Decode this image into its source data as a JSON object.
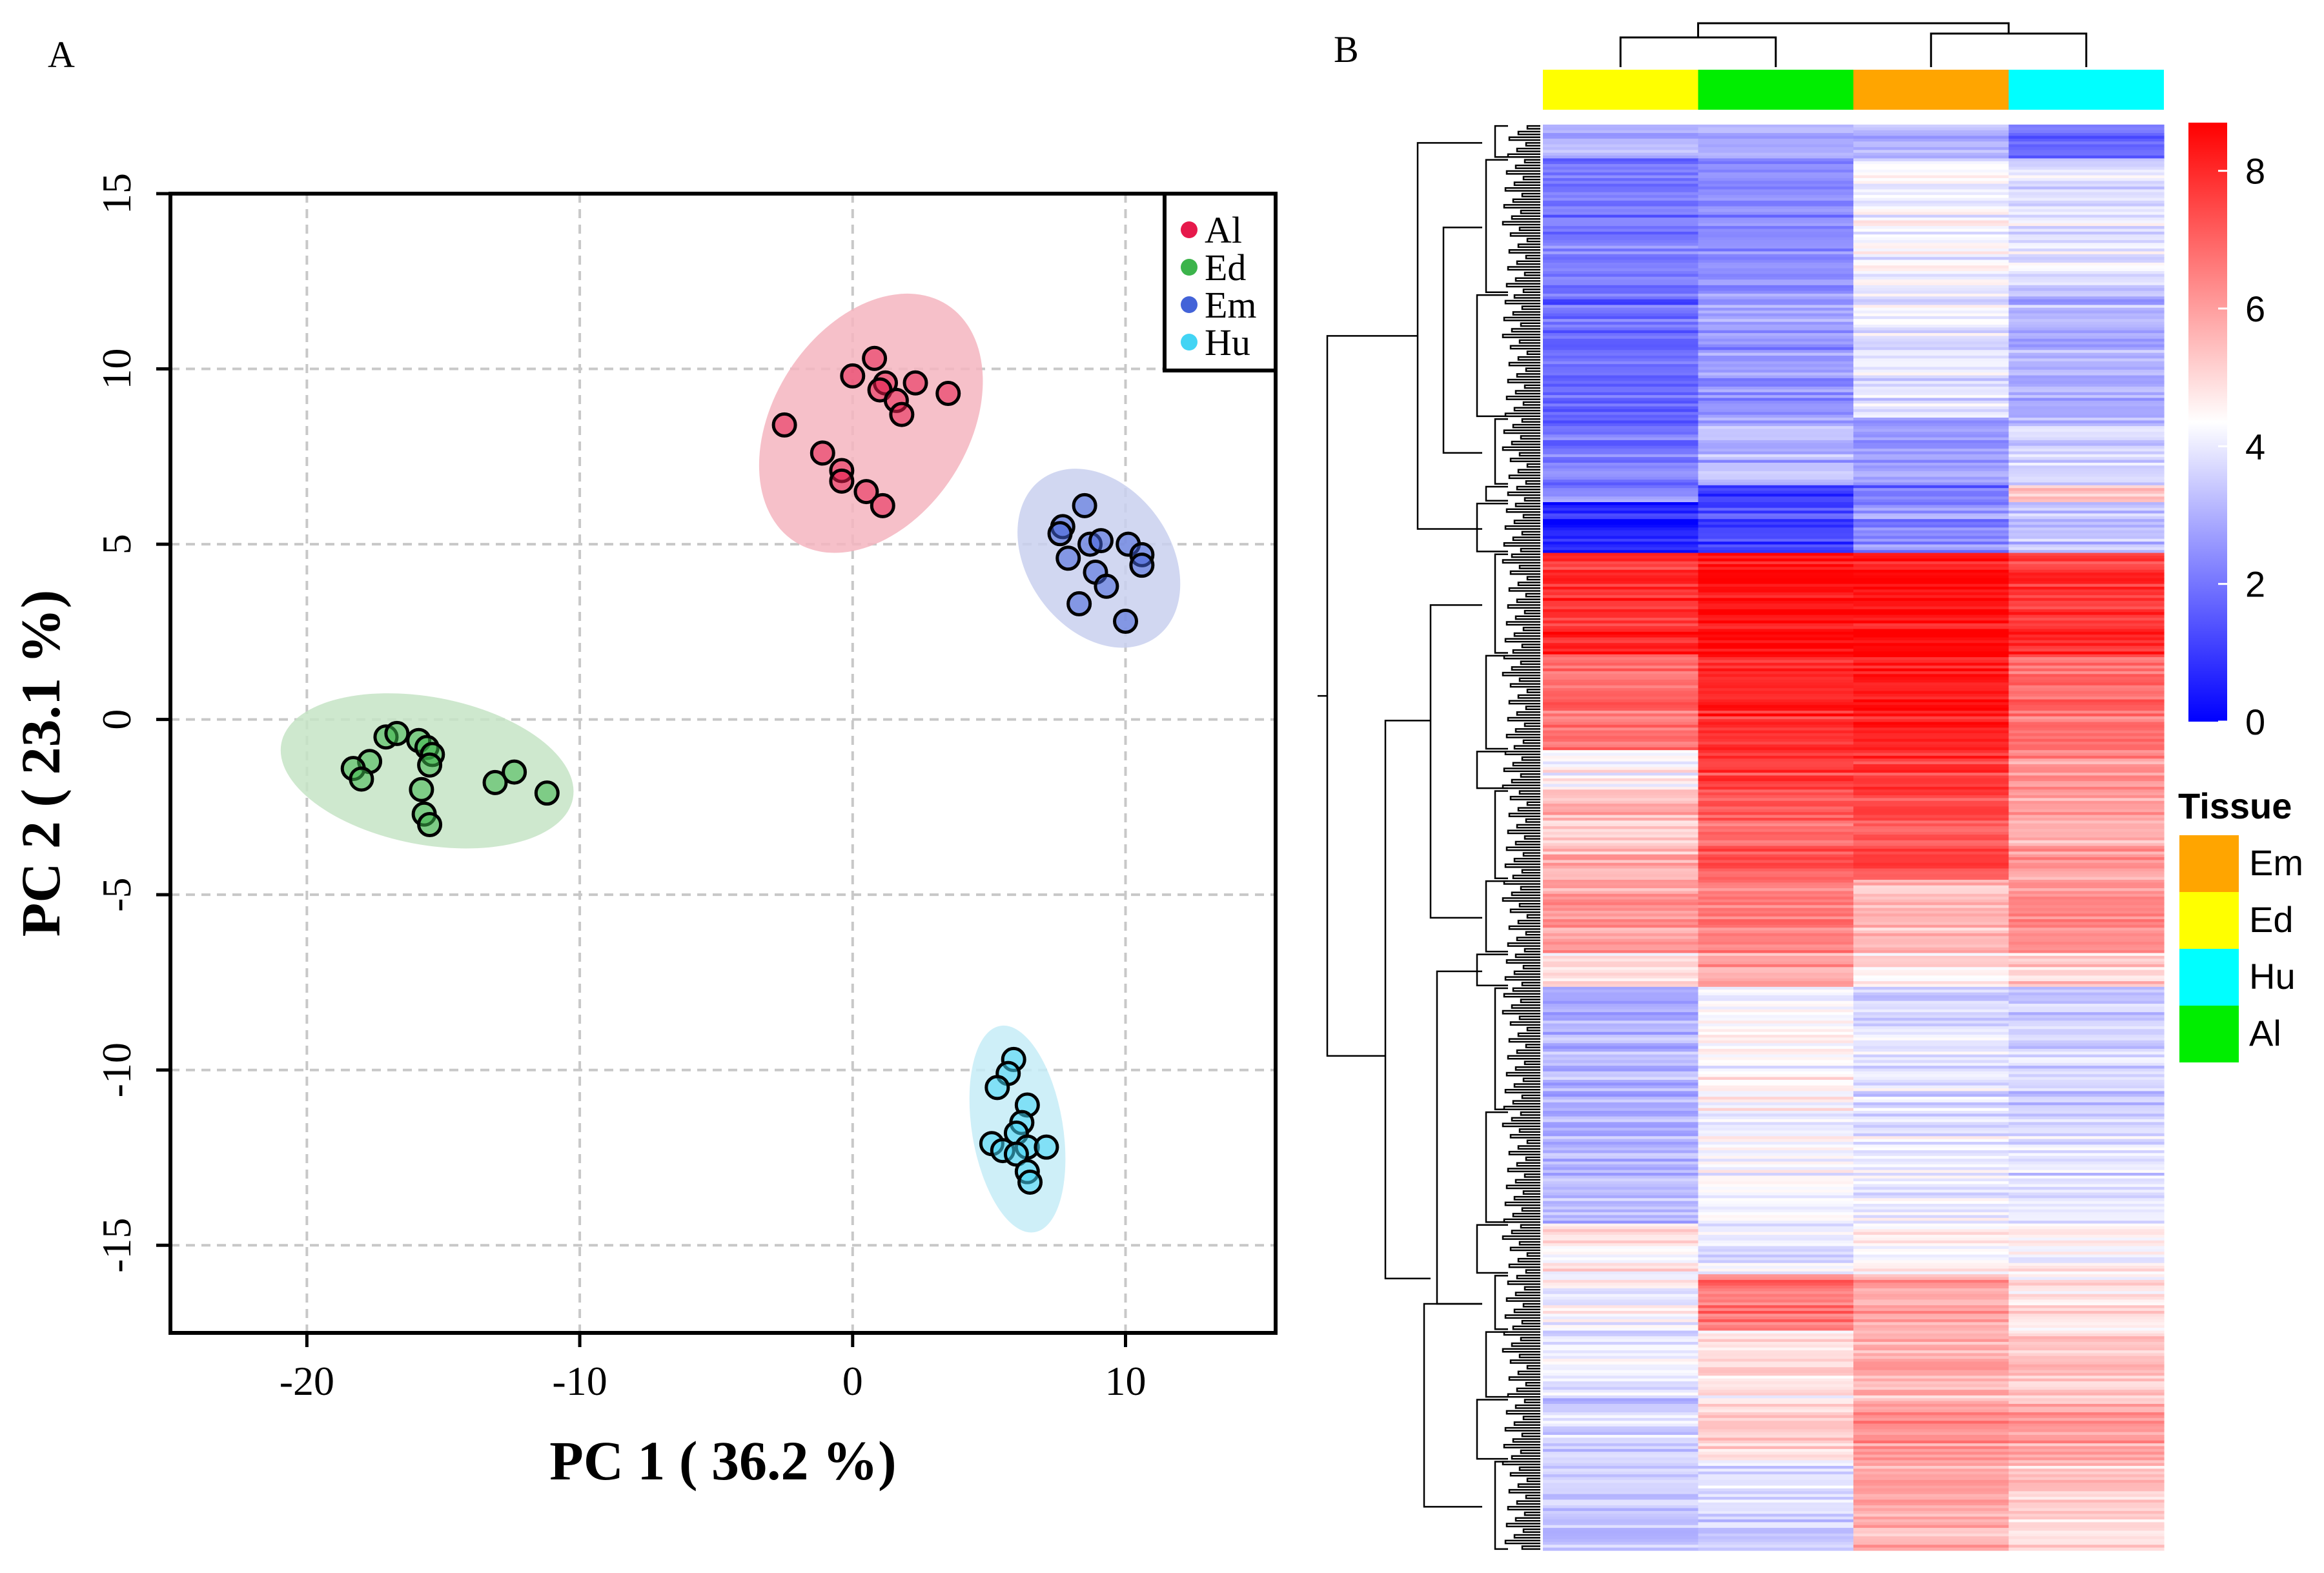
{
  "panels": {
    "a_label": "A",
    "b_label": "B"
  },
  "chart_data": [
    {
      "type": "scatter",
      "panel": "A",
      "xlabel": "PC 1 ( 36.2 %)",
      "ylabel": "PC 2 ( 23.1 %)",
      "xlim": [
        -25,
        15.5
      ],
      "ylim": [
        -17.5,
        15
      ],
      "xticks": [
        -20,
        -10,
        0,
        10
      ],
      "xtick_labels": [
        "-20",
        "-10",
        "0",
        "10"
      ],
      "yticks": [
        -15,
        -10,
        -5,
        0,
        5,
        10,
        15
      ],
      "ytick_labels": [
        "-15",
        "-10",
        "-5",
        "0",
        "5",
        "10",
        "15"
      ],
      "grid": true,
      "legend_position": "top-right",
      "ellipses": true,
      "series": [
        {
          "name": "Al",
          "color": "#e6194b",
          "ellipse_color": "#f4b5c0",
          "points": [
            {
              "x": 0.8,
              "y": 10.3
            },
            {
              "x": 0.0,
              "y": 9.8
            },
            {
              "x": 1.2,
              "y": 9.6
            },
            {
              "x": 1.0,
              "y": 9.4
            },
            {
              "x": 1.6,
              "y": 9.1
            },
            {
              "x": 2.3,
              "y": 9.6
            },
            {
              "x": 3.5,
              "y": 9.3
            },
            {
              "x": 1.8,
              "y": 8.7
            },
            {
              "x": -2.5,
              "y": 8.4
            },
            {
              "x": -1.1,
              "y": 7.6
            },
            {
              "x": -0.4,
              "y": 7.1
            },
            {
              "x": -0.4,
              "y": 6.8
            },
            {
              "x": 0.5,
              "y": 6.5
            },
            {
              "x": 1.1,
              "y": 6.1
            }
          ]
        },
        {
          "name": "Ed",
          "color": "#3cb44b",
          "ellipse_color": "#c5e4c5",
          "points": [
            {
              "x": -17.1,
              "y": -0.5
            },
            {
              "x": -16.7,
              "y": -0.4
            },
            {
              "x": -15.9,
              "y": -0.6
            },
            {
              "x": -15.6,
              "y": -0.8
            },
            {
              "x": -15.4,
              "y": -1.0
            },
            {
              "x": -15.5,
              "y": -1.3
            },
            {
              "x": -17.7,
              "y": -1.2
            },
            {
              "x": -18.3,
              "y": -1.4
            },
            {
              "x": -18.0,
              "y": -1.7
            },
            {
              "x": -15.8,
              "y": -2.0
            },
            {
              "x": -15.7,
              "y": -2.7
            },
            {
              "x": -15.5,
              "y": -3.0
            },
            {
              "x": -13.1,
              "y": -1.8
            },
            {
              "x": -12.4,
              "y": -1.5
            },
            {
              "x": -11.2,
              "y": -2.1
            }
          ]
        },
        {
          "name": "Em",
          "color": "#4363d8",
          "ellipse_color": "#c9d0ee",
          "points": [
            {
              "x": 8.5,
              "y": 6.1
            },
            {
              "x": 7.7,
              "y": 5.5
            },
            {
              "x": 7.6,
              "y": 5.3
            },
            {
              "x": 8.7,
              "y": 5.0
            },
            {
              "x": 9.1,
              "y": 5.1
            },
            {
              "x": 10.1,
              "y": 5.0
            },
            {
              "x": 10.6,
              "y": 4.7
            },
            {
              "x": 10.6,
              "y": 4.4
            },
            {
              "x": 7.9,
              "y": 4.6
            },
            {
              "x": 8.9,
              "y": 4.2
            },
            {
              "x": 9.3,
              "y": 3.8
            },
            {
              "x": 8.3,
              "y": 3.3
            },
            {
              "x": 10.0,
              "y": 2.8
            }
          ]
        },
        {
          "name": "Hu",
          "color": "#42d4f4",
          "ellipse_color": "#c6ecf7",
          "points": [
            {
              "x": 5.9,
              "y": -9.7
            },
            {
              "x": 5.7,
              "y": -10.1
            },
            {
              "x": 5.3,
              "y": -10.5
            },
            {
              "x": 6.4,
              "y": -11.0
            },
            {
              "x": 6.2,
              "y": -11.5
            },
            {
              "x": 6.0,
              "y": -11.8
            },
            {
              "x": 5.1,
              "y": -12.1
            },
            {
              "x": 5.5,
              "y": -12.3
            },
            {
              "x": 6.4,
              "y": -12.2
            },
            {
              "x": 7.1,
              "y": -12.2
            },
            {
              "x": 6.0,
              "y": -12.4
            },
            {
              "x": 6.4,
              "y": -12.9
            },
            {
              "x": 6.5,
              "y": -13.2
            }
          ]
        }
      ]
    },
    {
      "type": "heatmap",
      "panel": "B",
      "columns": [
        {
          "tissue": "Ed",
          "color": "#ffff00"
        },
        {
          "tissue": "Al",
          "color": "#00ee00"
        },
        {
          "tissue": "Em",
          "color": "#ffa500"
        },
        {
          "tissue": "Hu",
          "color": "#00ffff"
        }
      ],
      "row_dendrogram": true,
      "column_dendrogram": true,
      "colorscale": {
        "low": "#0000ff",
        "mid": "#ffffff",
        "high": "#ff0000",
        "range": [
          0,
          8.7
        ],
        "midpoint": 4.35,
        "ticks": [
          0,
          2,
          4,
          6,
          8
        ],
        "tick_labels": [
          "0",
          "2",
          "4",
          "6",
          "8"
        ]
      },
      "row_blocks": [
        {
          "rows": 12,
          "values": [
            3.0,
            2.8,
            3.0,
            1.8
          ]
        },
        {
          "rows": 48,
          "values": [
            2.0,
            2.4,
            4.2,
            3.8
          ]
        },
        {
          "rows": 44,
          "values": [
            1.8,
            2.6,
            3.9,
            3.0
          ]
        },
        {
          "rows": 24,
          "values": [
            1.9,
            3.0,
            2.6,
            3.4
          ]
        },
        {
          "rows": 6,
          "values": [
            2.2,
            0.8,
            1.8,
            5.2
          ]
        },
        {
          "rows": 18,
          "values": [
            0.6,
            1.2,
            2.5,
            3.4
          ]
        },
        {
          "rows": 36,
          "values": [
            7.9,
            8.5,
            8.5,
            7.8
          ]
        },
        {
          "rows": 34,
          "values": [
            6.8,
            8.0,
            8.2,
            6.9
          ]
        },
        {
          "rows": 14,
          "values": [
            4.4,
            7.6,
            7.7,
            6.2
          ]
        },
        {
          "rows": 32,
          "values": [
            5.6,
            7.0,
            7.5,
            5.9
          ]
        },
        {
          "rows": 26,
          "values": [
            6.0,
            6.4,
            5.4,
            6.2
          ]
        },
        {
          "rows": 12,
          "values": [
            5.0,
            6.0,
            4.9,
            5.2
          ]
        },
        {
          "rows": 44,
          "values": [
            3.0,
            4.4,
            3.8,
            3.6
          ]
        },
        {
          "rows": 40,
          "values": [
            3.1,
            4.2,
            3.9,
            3.8
          ]
        },
        {
          "rows": 18,
          "values": [
            4.7,
            4.0,
            4.6,
            4.5
          ]
        },
        {
          "rows": 20,
          "values": [
            4.3,
            6.7,
            5.9,
            4.8
          ]
        },
        {
          "rows": 24,
          "values": [
            3.9,
            4.7,
            5.6,
            5.2
          ]
        },
        {
          "rows": 22,
          "values": [
            3.6,
            5.0,
            6.1,
            5.9
          ]
        },
        {
          "rows": 32,
          "values": [
            3.3,
            3.6,
            5.7,
            5.1
          ]
        }
      ],
      "legend": {
        "title": "Tissue",
        "entries": [
          {
            "label": "Em",
            "color": "#ffa500"
          },
          {
            "label": "Ed",
            "color": "#ffff00"
          },
          {
            "label": "Hu",
            "color": "#00ffff"
          },
          {
            "label": "Al",
            "color": "#00ee00"
          }
        ]
      }
    }
  ]
}
